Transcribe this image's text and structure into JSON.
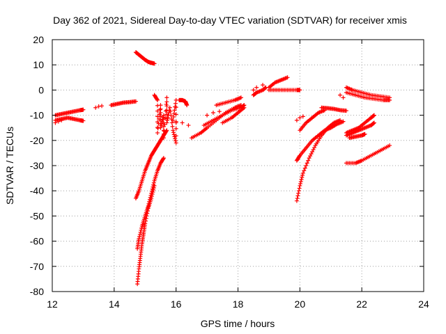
{
  "chart_data": {
    "type": "scatter",
    "title": "Day 362 of 2021, Sidereal Day-to-day VTEC variation (SDTVAR) for receiver xmis",
    "xlabel": "GPS time / hours",
    "ylabel": "SDTVAR / TECUs",
    "xlim": [
      12,
      24
    ],
    "ylim": [
      -80,
      20
    ],
    "xticks": [
      "12",
      "14",
      "16",
      "18",
      "20",
      "22",
      "24"
    ],
    "yticks": [
      "20",
      "10",
      "0",
      "-10",
      "-20",
      "-30",
      "-40",
      "-50",
      "-60",
      "-70",
      "-80"
    ],
    "grid": true,
    "legend": "none",
    "marker": "plus",
    "color": "#ff0000",
    "series": [
      {
        "points": [
          [
            12.1,
            -10
          ],
          [
            12.3,
            -9.5
          ],
          [
            12.5,
            -9
          ],
          [
            12.7,
            -8.5
          ],
          [
            12.9,
            -8
          ],
          [
            13.0,
            -7.8
          ]
        ]
      },
      {
        "points": [
          [
            12.1,
            -12
          ],
          [
            12.3,
            -11.5
          ],
          [
            12.5,
            -11
          ],
          [
            12.7,
            -11.5
          ],
          [
            12.9,
            -12
          ],
          [
            13.0,
            -12.2
          ]
        ]
      },
      {
        "points": [
          [
            12.1,
            -13
          ],
          [
            12.2,
            -12.5
          ],
          [
            12.3,
            -12
          ]
        ]
      },
      {
        "points": [
          [
            13.4,
            -7
          ],
          [
            13.5,
            -6.5
          ],
          [
            13.6,
            -6.3
          ]
        ]
      },
      {
        "points": [
          [
            13.9,
            -6
          ],
          [
            14.1,
            -5.5
          ],
          [
            14.3,
            -5
          ],
          [
            14.5,
            -4.8
          ],
          [
            14.7,
            -4.5
          ]
        ]
      },
      {
        "points": [
          [
            14.7,
            15
          ],
          [
            14.8,
            14
          ],
          [
            14.9,
            13
          ],
          [
            15.0,
            12
          ],
          [
            15.1,
            11.2
          ],
          [
            15.2,
            10.8
          ],
          [
            15.3,
            10.5
          ]
        ]
      },
      {
        "points": [
          [
            14.7,
            -43
          ],
          [
            14.8,
            -40
          ],
          [
            14.9,
            -36
          ],
          [
            15.0,
            -32
          ],
          [
            15.1,
            -29
          ],
          [
            15.2,
            -26
          ],
          [
            15.3,
            -24
          ],
          [
            15.4,
            -22
          ],
          [
            15.5,
            -20
          ],
          [
            15.6,
            -18
          ],
          [
            15.7,
            -16
          ]
        ]
      },
      {
        "points": [
          [
            14.75,
            -77
          ],
          [
            14.8,
            -71
          ],
          [
            14.85,
            -66
          ],
          [
            14.9,
            -61
          ],
          [
            14.95,
            -57
          ],
          [
            15.0,
            -53
          ],
          [
            15.1,
            -47
          ],
          [
            15.2,
            -43
          ],
          [
            15.3,
            -38
          ]
        ]
      },
      {
        "points": [
          [
            14.75,
            -63
          ],
          [
            14.8,
            -59
          ],
          [
            14.9,
            -54
          ],
          [
            15.0,
            -50
          ],
          [
            15.1,
            -46
          ],
          [
            15.2,
            -41
          ],
          [
            15.3,
            -36
          ],
          [
            15.4,
            -32
          ],
          [
            15.5,
            -29
          ],
          [
            15.6,
            -27
          ]
        ]
      },
      {
        "points": [
          [
            15.3,
            -2
          ],
          [
            15.4,
            -4
          ],
          [
            15.4,
            -17
          ],
          [
            15.5,
            -6
          ],
          [
            15.5,
            -15
          ],
          [
            15.6,
            -10
          ],
          [
            15.6,
            -19
          ],
          [
            15.7,
            -3
          ],
          [
            15.7,
            -13
          ],
          [
            15.8,
            -7
          ],
          [
            15.9,
            -16
          ],
          [
            16.0,
            -21
          ],
          [
            16.0,
            -4
          ],
          [
            15.9,
            -12
          ]
        ]
      },
      {
        "points": [
          [
            16.0,
            -13
          ],
          [
            16.2,
            -13
          ],
          [
            16.4,
            -14
          ]
        ]
      },
      {
        "points": [
          [
            16.1,
            -4
          ],
          [
            16.2,
            -4
          ],
          [
            16.3,
            -4.5
          ],
          [
            16.35,
            -6
          ]
        ]
      },
      {
        "points": [
          [
            16.5,
            -19
          ],
          [
            16.8,
            -17
          ],
          [
            17.0,
            -15
          ],
          [
            17.3,
            -12
          ],
          [
            17.6,
            -9
          ],
          [
            17.9,
            -7
          ],
          [
            18.1,
            -6
          ]
        ]
      },
      {
        "points": [
          [
            16.9,
            -14
          ],
          [
            17.2,
            -12
          ],
          [
            17.5,
            -10
          ],
          [
            17.8,
            -8
          ],
          [
            18.1,
            -7
          ],
          [
            18.2,
            -6
          ]
        ]
      },
      {
        "points": [
          [
            17.3,
            -6
          ],
          [
            17.6,
            -5
          ],
          [
            17.9,
            -4
          ],
          [
            18.1,
            -3
          ]
        ]
      },
      {
        "points": [
          [
            17.5,
            -13
          ],
          [
            17.8,
            -11
          ],
          [
            18.0,
            -9
          ],
          [
            18.2,
            -7
          ]
        ]
      },
      {
        "points": [
          [
            17.0,
            -10
          ],
          [
            17.2,
            -9
          ],
          [
            17.4,
            -8.5
          ]
        ]
      },
      {
        "points": [
          [
            18.5,
            -2
          ],
          [
            18.6,
            -1
          ],
          [
            18.8,
            0
          ],
          [
            18.9,
            1
          ]
        ]
      },
      {
        "points": [
          [
            18.5,
            0
          ],
          [
            18.6,
            1
          ],
          [
            18.8,
            2
          ]
        ]
      },
      {
        "points": [
          [
            19.0,
            1
          ],
          [
            19.2,
            3
          ],
          [
            19.4,
            4
          ],
          [
            19.6,
            5
          ]
        ]
      },
      {
        "points": [
          [
            19.0,
            0
          ],
          [
            19.3,
            0
          ],
          [
            19.6,
            0
          ],
          [
            19.9,
            0
          ],
          [
            20.0,
            0
          ]
        ]
      },
      {
        "points": [
          [
            19.9,
            -44
          ],
          [
            20.0,
            -38
          ],
          [
            20.1,
            -33
          ],
          [
            20.3,
            -27
          ],
          [
            20.5,
            -22
          ],
          [
            20.7,
            -18
          ],
          [
            20.9,
            -15
          ],
          [
            21.1,
            -13
          ],
          [
            21.3,
            -12
          ]
        ]
      },
      {
        "points": [
          [
            19.9,
            -28
          ],
          [
            20.0,
            -26
          ],
          [
            20.2,
            -23
          ],
          [
            20.4,
            -20
          ],
          [
            20.6,
            -18
          ],
          [
            20.8,
            -16
          ],
          [
            21.0,
            -15
          ],
          [
            21.2,
            -13.5
          ],
          [
            21.4,
            -12.5
          ]
        ]
      },
      {
        "points": [
          [
            19.9,
            -12
          ],
          [
            20.0,
            -11
          ],
          [
            20.1,
            -10.5
          ]
        ]
      },
      {
        "points": [
          [
            20.0,
            -16
          ],
          [
            20.2,
            -13
          ],
          [
            20.4,
            -11
          ],
          [
            20.6,
            -9
          ],
          [
            20.8,
            -8
          ]
        ]
      },
      {
        "points": [
          [
            20.7,
            -7
          ],
          [
            20.9,
            -7.2
          ],
          [
            21.1,
            -7.5
          ],
          [
            21.3,
            -8
          ],
          [
            21.5,
            -8.2
          ]
        ]
      },
      {
        "points": [
          [
            21.3,
            -2
          ],
          [
            21.4,
            -3
          ]
        ]
      },
      {
        "points": [
          [
            21.5,
            1
          ],
          [
            21.7,
            0
          ],
          [
            22.0,
            -1
          ],
          [
            22.3,
            -2
          ],
          [
            22.6,
            -2.5
          ],
          [
            22.9,
            -3
          ]
        ]
      },
      {
        "points": [
          [
            21.5,
            -1
          ],
          [
            21.8,
            -2
          ],
          [
            22.1,
            -3
          ],
          [
            22.4,
            -3.5
          ],
          [
            22.7,
            -4
          ],
          [
            22.9,
            -4
          ]
        ]
      },
      {
        "points": [
          [
            21.5,
            -18
          ],
          [
            21.7,
            -17
          ],
          [
            21.9,
            -16
          ],
          [
            22.1,
            -15
          ],
          [
            22.3,
            -14
          ],
          [
            22.4,
            -13
          ]
        ]
      },
      {
        "points": [
          [
            21.5,
            -17
          ],
          [
            21.7,
            -16
          ],
          [
            21.9,
            -15
          ],
          [
            22.1,
            -13
          ],
          [
            22.3,
            -11
          ],
          [
            22.4,
            -10
          ]
        ]
      },
      {
        "points": [
          [
            21.5,
            -29
          ],
          [
            21.8,
            -29
          ],
          [
            22.0,
            -28
          ],
          [
            22.3,
            -26
          ],
          [
            22.6,
            -24
          ],
          [
            22.9,
            -22
          ]
        ]
      },
      {
        "points": [
          [
            21.6,
            -19
          ],
          [
            21.8,
            -18.5
          ],
          [
            22.0,
            -18
          ],
          [
            22.1,
            -17.5
          ]
        ]
      }
    ]
  }
}
